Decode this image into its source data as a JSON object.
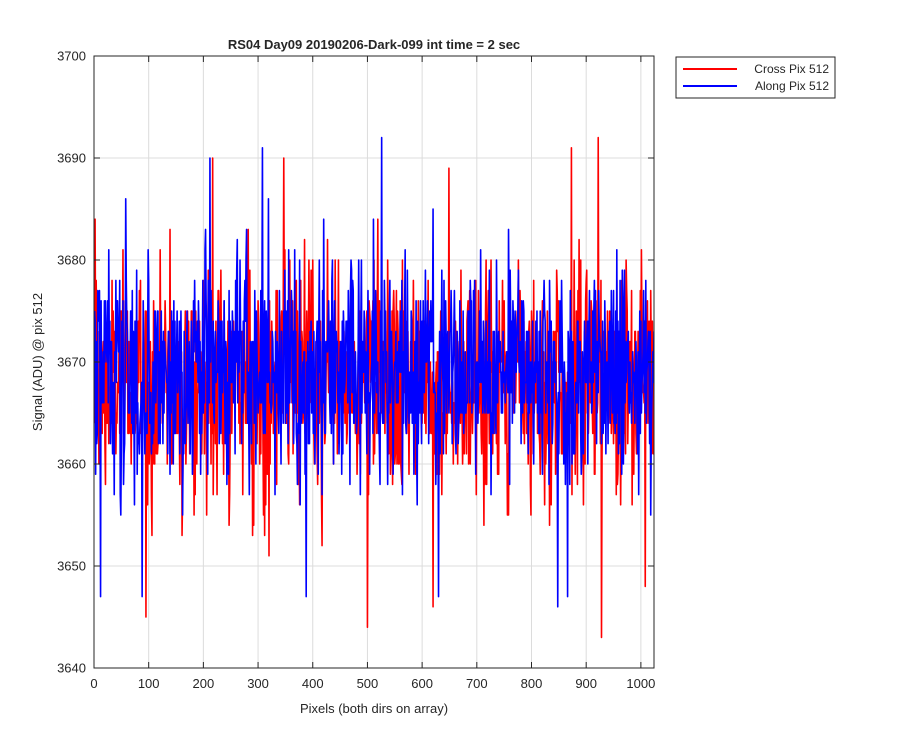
{
  "chart_data": {
    "type": "line",
    "title": "RS04 Day09 20190206-Dark-099 int time = 2 sec",
    "xlabel": "Pixels (both dirs on array)",
    "ylabel": "Signal (ADU) @ pix 512",
    "xlim": [
      0,
      1024
    ],
    "ylim": [
      3640,
      3700
    ],
    "xticks": [
      0,
      100,
      200,
      300,
      400,
      500,
      600,
      700,
      800,
      900,
      1000
    ],
    "yticks": [
      3640,
      3650,
      3660,
      3670,
      3680,
      3690,
      3700
    ],
    "xtick_labels": [
      "0",
      "100",
      "200",
      "300",
      "400",
      "500",
      "600",
      "700",
      "800",
      "900",
      "1000"
    ],
    "ytick_labels": [
      "3640",
      "3650",
      "3660",
      "3670",
      "3680",
      "3690",
      "3700"
    ],
    "grid": true,
    "legend_position": "outside-top-right",
    "series": [
      {
        "name": "Cross Pix 512",
        "color": "#ff0000",
        "x_start": 1,
        "x_step": 1,
        "count": 1024,
        "mean": 3668,
        "spread_sd": 5.5,
        "sample_points": [
          [
            2,
            3684
          ],
          [
            95,
            3645
          ],
          [
            139,
            3683
          ],
          [
            217,
            3690
          ],
          [
            347,
            3690
          ],
          [
            500,
            3644
          ],
          [
            519,
            3684
          ],
          [
            620,
            3646
          ],
          [
            649,
            3689
          ],
          [
            873,
            3691
          ],
          [
            922,
            3692
          ],
          [
            928,
            3643
          ],
          [
            1008,
            3648
          ]
        ]
      },
      {
        "name": "Along Pix 512",
        "color": "#0000ff",
        "x_start": 1,
        "x_step": 1,
        "count": 1024,
        "mean": 3669,
        "spread_sd": 5.5,
        "sample_points": [
          [
            12,
            3647
          ],
          [
            88,
            3647
          ],
          [
            212,
            3690
          ],
          [
            308,
            3691
          ],
          [
            388,
            3647
          ],
          [
            526,
            3692
          ],
          [
            630,
            3647
          ],
          [
            848,
            3646
          ],
          [
            866,
            3647
          ],
          [
            1018,
            3655
          ]
        ]
      }
    ]
  }
}
